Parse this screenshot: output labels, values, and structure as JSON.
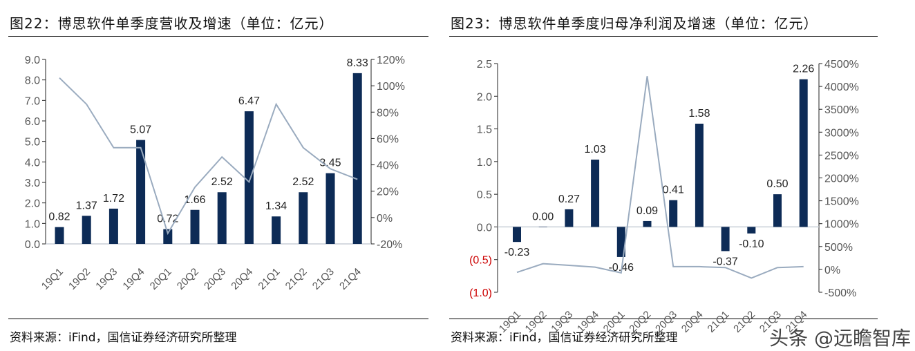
{
  "left_panel": {
    "title": "图22：博思软件单季度营收及增速（单位：亿元）",
    "source": "资料来源：iFind，国信证券经济研究所整理"
  },
  "right_panel": {
    "title": "图23：博思软件单季度归母净利润及增速（单位：亿元）",
    "source": "资料来源：iFind，国信证券经济研究所整理"
  },
  "watermark": "头条 @远瞻智库",
  "colors": {
    "bar": "#0d2b56",
    "line": "#9aabbf",
    "negative_tick": "#cc0000",
    "axis_text": "#555555"
  },
  "chart_data": [
    {
      "type": "bar+line",
      "categories": [
        "19Q1",
        "19Q2",
        "19Q3",
        "19Q4",
        "20Q1",
        "20Q2",
        "20Q3",
        "20Q4",
        "21Q1",
        "21Q2",
        "21Q3",
        "21Q4"
      ],
      "series": [
        {
          "kind": "bar",
          "axis": "left",
          "values": [
            0.82,
            1.37,
            1.72,
            5.07,
            0.72,
            1.66,
            2.52,
            6.47,
            1.34,
            2.52,
            3.45,
            8.33
          ],
          "labels": [
            "0.82",
            "1.37",
            "1.72",
            "5.07",
            "0.72",
            "1.66",
            "2.52",
            "6.47",
            "1.34",
            "2.52",
            "3.45",
            "8.33"
          ]
        },
        {
          "kind": "line",
          "axis": "right",
          "values": [
            106,
            86,
            53,
            53,
            -12,
            23,
            46,
            27,
            86,
            53,
            37,
            29
          ]
        }
      ],
      "left_axis": {
        "range": [
          0,
          9
        ],
        "ticks": [
          "0.0",
          "1.0",
          "2.0",
          "3.0",
          "4.0",
          "5.0",
          "6.0",
          "7.0",
          "8.0",
          "9.0"
        ]
      },
      "right_axis": {
        "range": [
          -20,
          120
        ],
        "ticks": [
          "-20%",
          "0%",
          "20%",
          "40%",
          "60%",
          "80%",
          "100%",
          "120%"
        ]
      }
    },
    {
      "type": "bar+line",
      "categories": [
        "19Q1",
        "19Q2",
        "19Q3",
        "19Q4",
        "20Q1",
        "20Q2",
        "20Q3",
        "20Q4",
        "21Q1",
        "21Q2",
        "21Q3",
        "21Q4"
      ],
      "series": [
        {
          "kind": "bar",
          "axis": "left",
          "values": [
            -0.23,
            0.0,
            0.27,
            1.03,
            -0.46,
            0.09,
            0.41,
            1.58,
            -0.37,
            -0.1,
            0.5,
            2.26
          ],
          "labels": [
            "-0.23",
            "0.00",
            "0.27",
            "1.03",
            "-0.46",
            "0.09",
            "0.41",
            "1.58",
            "-0.37",
            "-0.10",
            "0.50",
            "2.26"
          ]
        },
        {
          "kind": "line",
          "axis": "right",
          "values": [
            -65,
            125,
            90,
            50,
            -75,
            4225,
            60,
            60,
            40,
            -190,
            40,
            60
          ]
        }
      ],
      "left_axis": {
        "range": [
          -1,
          2.5
        ],
        "ticks": [
          "(1.0)",
          "(0.5)",
          "0.0",
          "0.5",
          "1.0",
          "1.5",
          "2.0",
          "2.5"
        ]
      },
      "right_axis": {
        "range": [
          -500,
          4500
        ],
        "ticks": [
          "-500%",
          "0%",
          "500%",
          "1000%",
          "1500%",
          "2000%",
          "2500%",
          "3000%",
          "3500%",
          "4000%",
          "4500%"
        ]
      }
    }
  ]
}
